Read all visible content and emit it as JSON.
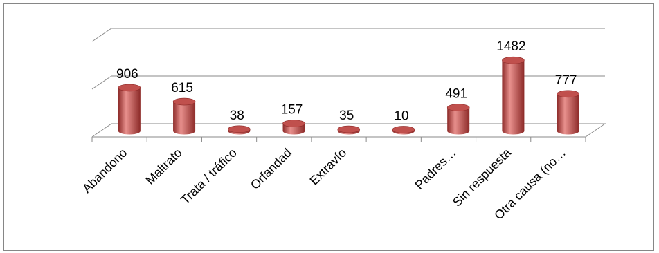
{
  "chart_data": {
    "type": "bar",
    "style": "3d-cylinder",
    "categories": [
      "Abandono",
      "Maltrato",
      "Trata / tráfico",
      "Orfandad",
      "Extravío",
      "",
      "Padres…",
      "Sin respuesta",
      "Otra causa (no…"
    ],
    "values": [
      906,
      615,
      38,
      157,
      35,
      10,
      491,
      1482,
      777
    ],
    "value_labels": [
      "906",
      "615",
      "38",
      "157",
      "35",
      "10",
      "491",
      "1482",
      "777"
    ],
    "ylim": [
      0,
      2000
    ],
    "grid": true,
    "legend": "none",
    "bar_color": "#c0504d",
    "bar_light": "#e8908d",
    "bar_dark": "#8c2a28"
  }
}
